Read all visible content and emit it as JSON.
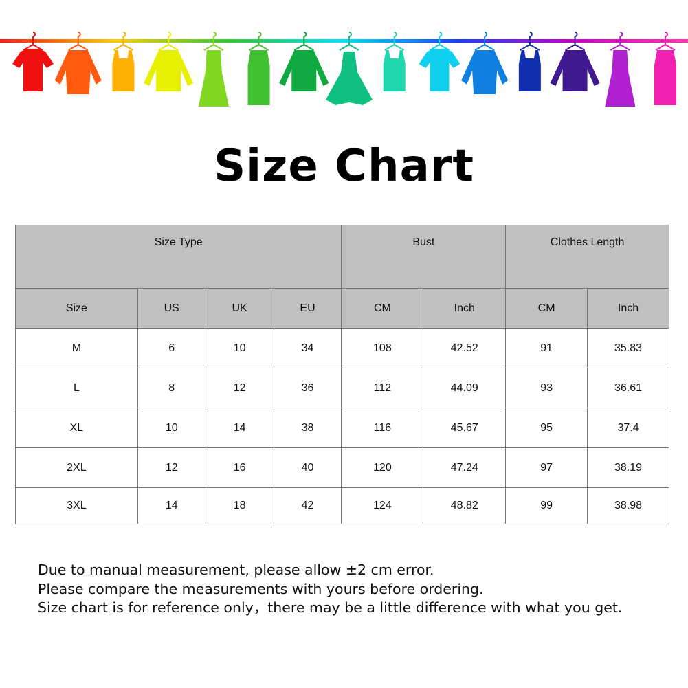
{
  "banner": {
    "rod_gradient": [
      "#ff1a1a",
      "#ffcc00",
      "#33cc33",
      "#00e5ff",
      "#1a3cff",
      "#cc00cc",
      "#ff33aa"
    ],
    "clothes": [
      {
        "type": "tshirt",
        "color": "#f01010"
      },
      {
        "type": "shirt",
        "color": "#ff5a10"
      },
      {
        "type": "tank",
        "color": "#ffb000"
      },
      {
        "type": "sweater",
        "color": "#e6f000"
      },
      {
        "type": "dress",
        "color": "#80d820"
      },
      {
        "type": "belted-dress",
        "color": "#40c030"
      },
      {
        "type": "sweater",
        "color": "#10a840"
      },
      {
        "type": "gown",
        "color": "#10c080"
      },
      {
        "type": "tank",
        "color": "#20d8b0"
      },
      {
        "type": "tshirt",
        "color": "#10d0f0"
      },
      {
        "type": "shirt",
        "color": "#1080e0"
      },
      {
        "type": "tank",
        "color": "#1030b0"
      },
      {
        "type": "sweater",
        "color": "#401890"
      },
      {
        "type": "dress",
        "color": "#b020d0"
      },
      {
        "type": "belted-dress",
        "color": "#f020b0"
      }
    ]
  },
  "title": "Size Chart",
  "table": {
    "groups": [
      "Size Type",
      "Bust",
      "Clothes Length"
    ],
    "columns": [
      "Size",
      "US",
      "UK",
      "EU",
      "CM",
      "Inch",
      "CM",
      "Inch"
    ],
    "rows": [
      [
        "M",
        "6",
        "10",
        "34",
        "108",
        "42.52",
        "91",
        "35.83"
      ],
      [
        "L",
        "8",
        "12",
        "36",
        "112",
        "44.09",
        "93",
        "36.61"
      ],
      [
        "XL",
        "10",
        "14",
        "38",
        "116",
        "45.67",
        "95",
        "37.4"
      ],
      [
        "2XL",
        "12",
        "16",
        "40",
        "120",
        "47.24",
        "97",
        "38.19"
      ],
      [
        "3XL",
        "14",
        "18",
        "42",
        "124",
        "48.82",
        "99",
        "38.98"
      ]
    ]
  },
  "notes": [
    "Due to manual measurement, please allow ±2 cm error.",
    "Please compare the measurements with yours before ordering.",
    "Size chart is for reference only，there may be a little difference with what you get."
  ]
}
